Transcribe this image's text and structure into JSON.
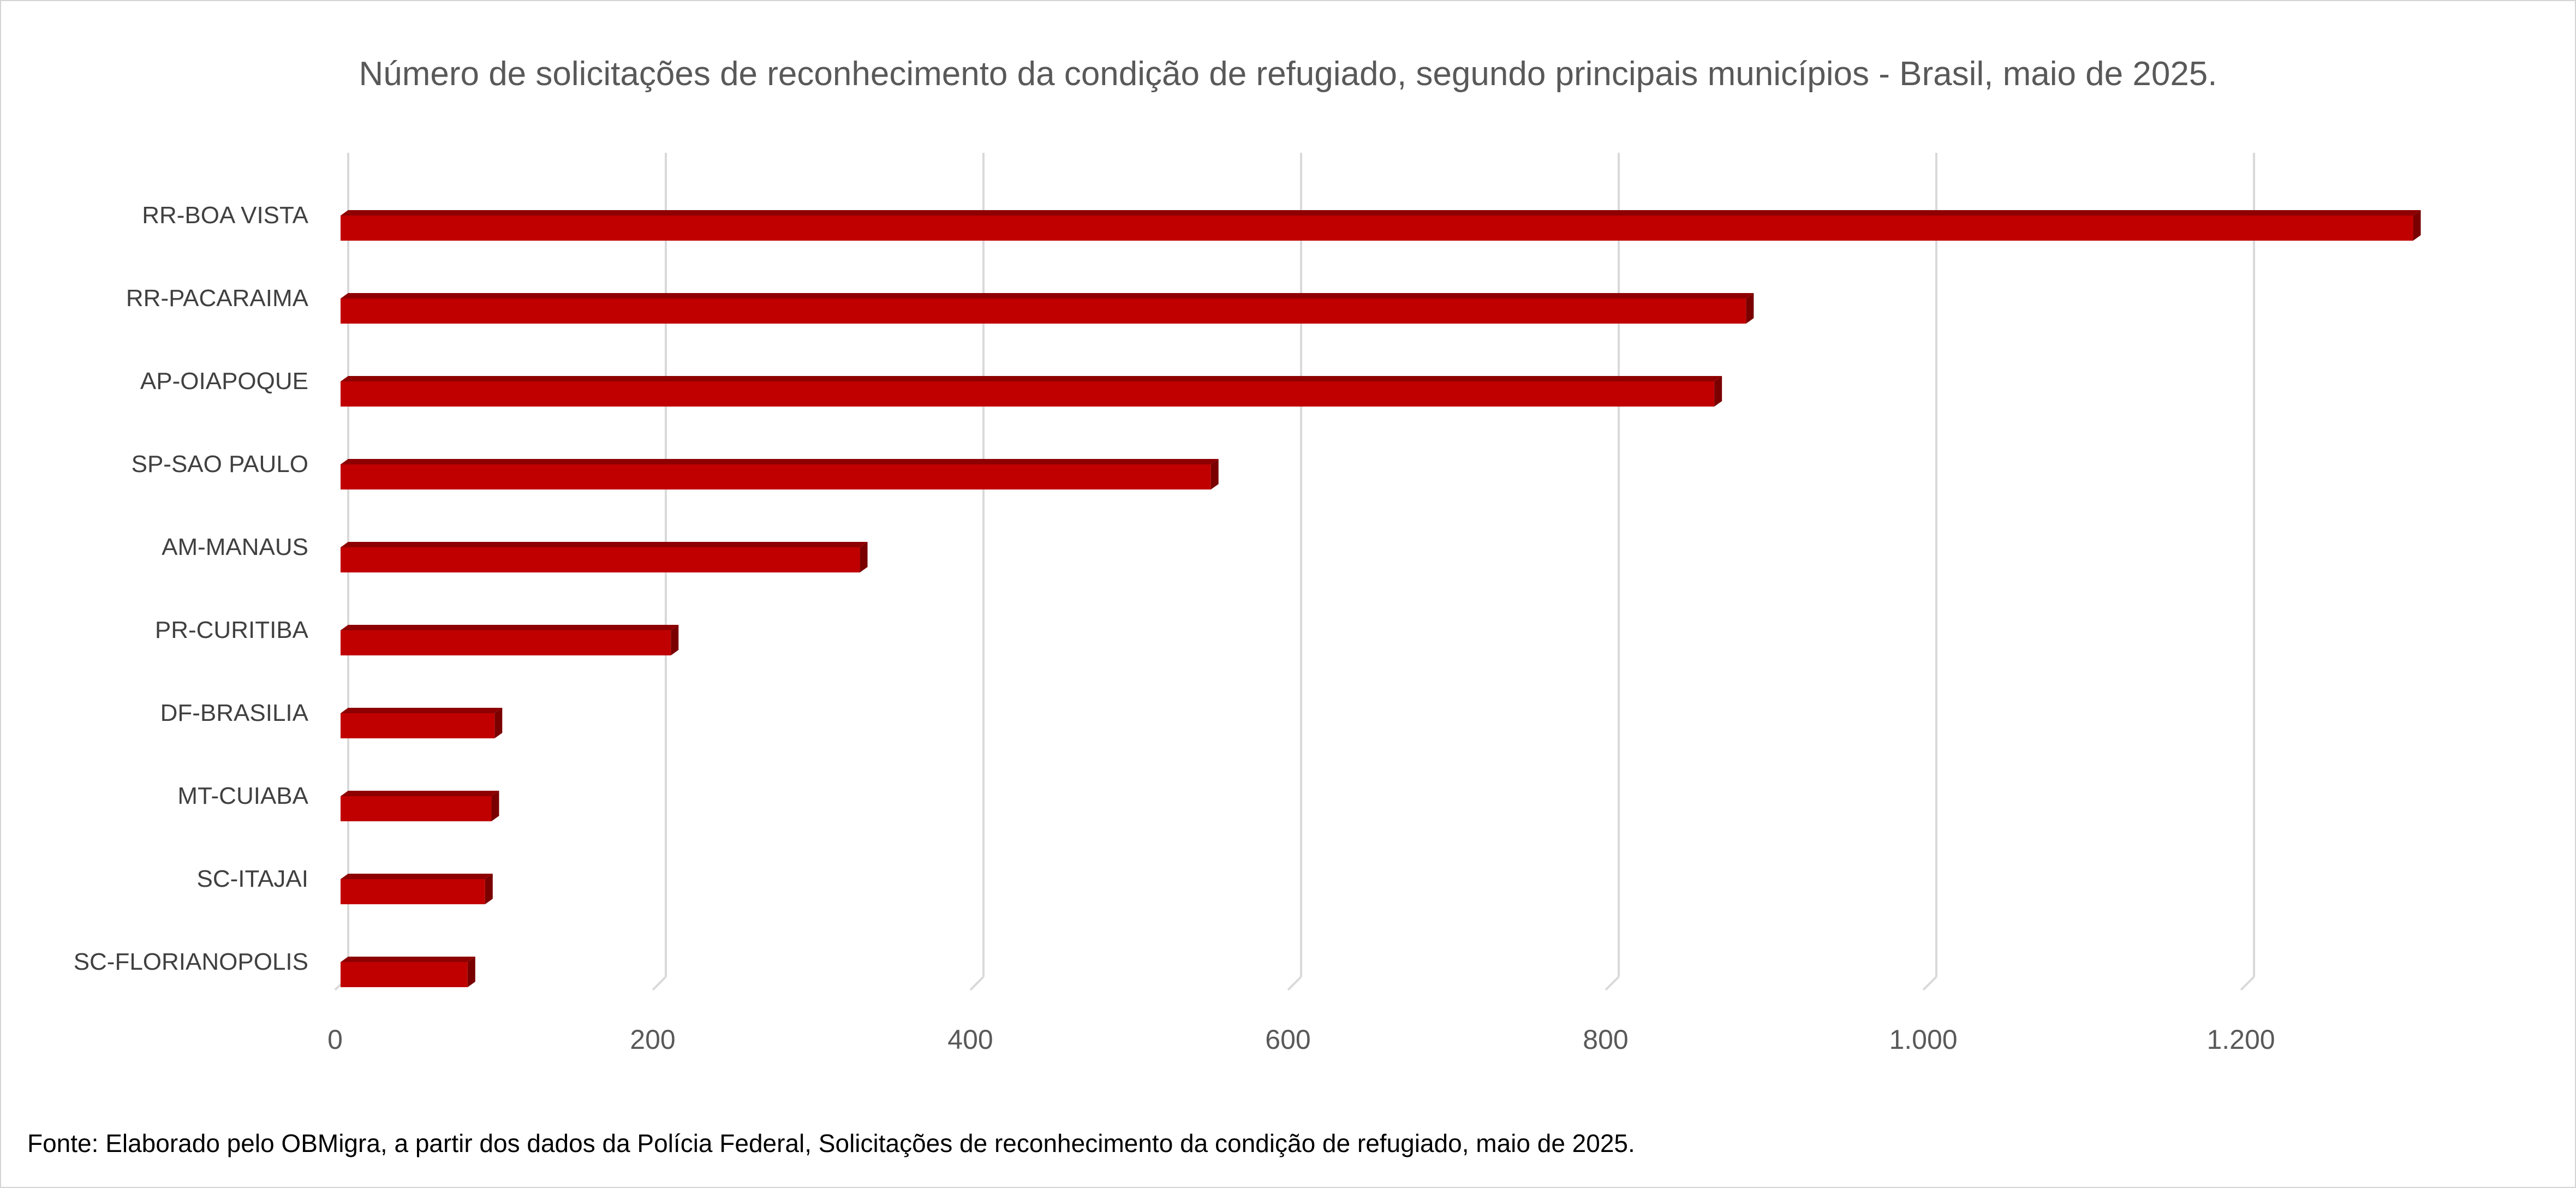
{
  "chart_data": {
    "type": "bar",
    "orientation": "horizontal",
    "title": "Número de solicitações de reconhecimento da condição de refugiado, segundo principais municípios - Brasil, maio de 2025.",
    "categories": [
      "RR-BOA VISTA",
      "RR-PACARAIMA",
      "AP-OIAPOQUE",
      "SP-SAO PAULO",
      "AM-MANAUS",
      "PR-CURITIBA",
      "DF-BRASILIA",
      "MT-CUIABA",
      "SC-ITAJAI",
      "SC-FLORIANOPOLIS"
    ],
    "values": [
      1305,
      885,
      865,
      548,
      327,
      208,
      97,
      95,
      91,
      80
    ],
    "xlim": [
      0,
      1300
    ],
    "xticks": [
      0,
      200,
      400,
      600,
      800,
      1000,
      1200
    ],
    "xtick_labels": [
      "0",
      "200",
      "400",
      "600",
      "800",
      "1.000",
      "1.200"
    ],
    "xlabel": "",
    "ylabel": "",
    "grid": true,
    "bar_color": "#c00000",
    "bar_top_color": "#8e0000",
    "bar_side_color": "#7a0000"
  },
  "source": "Fonte: Elaborado pelo OBMigra, a partir dos dados da Polícia Federal, Solicitações de reconhecimento da condição de refugiado, maio de 2025."
}
